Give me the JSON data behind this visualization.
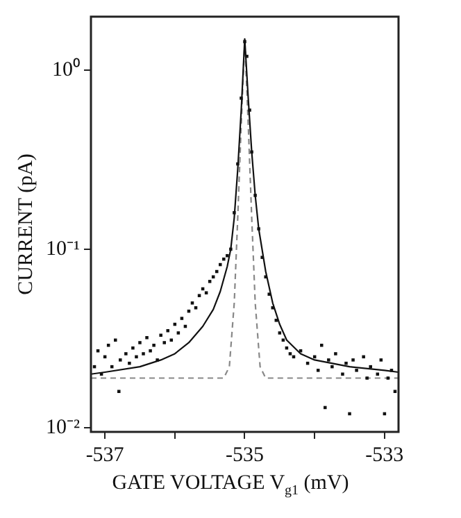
{
  "chart_data": {
    "type": "scatter",
    "xlabel": "GATE VOLTAGE V$_{g1}$ (mV)",
    "ylabel": "CURRENT (pA)",
    "log": "y",
    "grid": false,
    "legend": false,
    "xlim": [
      -537.2,
      -532.8
    ],
    "xticks": [
      -537,
      {
        "value": -536,
        "label": null
      },
      -535,
      {
        "value": -534,
        "label": null
      },
      -533
    ],
    "ylim": [
      0.0095,
      2
    ],
    "yticks": [
      {
        "value": 0.01,
        "label": "10⁻²"
      },
      {
        "value": 0.1,
        "label": "10⁻¹"
      },
      {
        "value": 1,
        "label": "10⁰"
      }
    ],
    "series": [
      {
        "type": "scatter",
        "marker": "square",
        "color": "#111111",
        "x": [
          -537.15,
          -537.1,
          -537.05,
          -537.0,
          -536.95,
          -536.9,
          -536.85,
          -536.8,
          -536.78,
          -536.7,
          -536.65,
          -536.6,
          -536.55,
          -536.5,
          -536.45,
          -536.4,
          -536.35,
          -536.3,
          -536.25,
          -536.2,
          -536.15,
          -536.1,
          -536.05,
          -536.0,
          -535.95,
          -535.9,
          -535.85,
          -535.8,
          -535.75,
          -535.7,
          -535.65,
          -535.6,
          -535.55,
          -535.5,
          -535.45,
          -535.4,
          -535.35,
          -535.3,
          -535.25,
          -535.2,
          -535.15,
          -535.1,
          -535.05,
          -535.0,
          -534.97,
          -534.93,
          -534.9,
          -534.85,
          -534.8,
          -534.75,
          -534.7,
          -534.65,
          -534.6,
          -534.55,
          -534.5,
          -534.45,
          -534.4,
          -534.35,
          -534.3,
          -534.2,
          -534.1,
          -534.0,
          -533.95,
          -533.9,
          -533.85,
          -533.8,
          -533.75,
          -533.7,
          -533.6,
          -533.55,
          -533.5,
          -533.45,
          -533.4,
          -533.3,
          -533.25,
          -533.2,
          -533.1,
          -533.05,
          -533.0,
          -532.95,
          -532.9,
          -532.85
        ],
        "values": [
          0.022,
          0.027,
          0.02,
          0.025,
          0.029,
          0.022,
          0.031,
          0.016,
          0.024,
          0.026,
          0.023,
          0.028,
          0.025,
          0.03,
          0.026,
          0.032,
          0.027,
          0.029,
          0.024,
          0.033,
          0.03,
          0.035,
          0.031,
          0.038,
          0.034,
          0.041,
          0.037,
          0.045,
          0.05,
          0.047,
          0.055,
          0.06,
          0.057,
          0.066,
          0.07,
          0.075,
          0.082,
          0.088,
          0.092,
          0.1,
          0.16,
          0.3,
          0.7,
          1.45,
          1.2,
          0.6,
          0.35,
          0.2,
          0.13,
          0.09,
          0.07,
          0.056,
          0.047,
          0.04,
          0.034,
          0.031,
          0.028,
          0.026,
          0.025,
          0.027,
          0.023,
          0.025,
          0.021,
          0.029,
          0.013,
          0.024,
          0.022,
          0.026,
          0.02,
          0.023,
          0.012,
          0.024,
          0.021,
          0.025,
          0.019,
          0.022,
          0.02,
          0.024,
          0.012,
          0.019,
          0.021,
          0.016
        ]
      },
      {
        "type": "line",
        "marker": "none",
        "color": "#111111",
        "line_style": "solid",
        "x": [
          -537.2,
          -537,
          -536.5,
          -536.2,
          -536,
          -535.8,
          -535.6,
          -535.45,
          -535.35,
          -535.25,
          -535.2,
          -535.15,
          -535.1,
          -535.05,
          -535.0,
          -534.95,
          -534.9,
          -534.85,
          -534.8,
          -534.7,
          -534.6,
          -534.5,
          -534.4,
          -534.2,
          -534,
          -533.5,
          -533,
          -532.8
        ],
        "values": [
          0.02,
          0.0205,
          0.022,
          0.024,
          0.026,
          0.03,
          0.037,
          0.046,
          0.058,
          0.08,
          0.1,
          0.15,
          0.28,
          0.6,
          1.5,
          0.7,
          0.35,
          0.2,
          0.13,
          0.075,
          0.05,
          0.038,
          0.031,
          0.026,
          0.024,
          0.022,
          0.021,
          0.0205
        ]
      },
      {
        "type": "line",
        "marker": "none",
        "color": "#888888",
        "line_style": "dashed",
        "x": [
          -537.2,
          -535.3,
          -535.22,
          -535.15,
          -535.1,
          -535.05,
          -535.0,
          -534.95,
          -534.9,
          -534.85,
          -534.78,
          -534.7,
          -532.8
        ],
        "values": [
          0.019,
          0.019,
          0.022,
          0.05,
          0.15,
          0.5,
          1.5,
          0.5,
          0.15,
          0.05,
          0.022,
          0.019,
          0.019
        ]
      }
    ]
  }
}
